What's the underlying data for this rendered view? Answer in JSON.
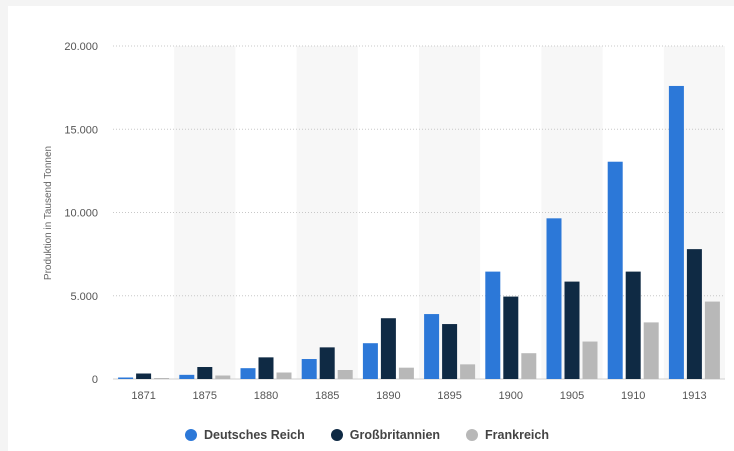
{
  "chart_data": {
    "type": "bar",
    "title": "",
    "xlabel": "",
    "ylabel": "Produktion in Tausend Tonnen",
    "ylim": [
      0,
      20000
    ],
    "yticks": [
      0,
      5000,
      10000,
      15000,
      20000
    ],
    "ytick_labels": [
      "0",
      "5.000",
      "10.000",
      "15.000",
      "20.000"
    ],
    "grid": true,
    "legend_position": "bottom",
    "categories": [
      "1871",
      "1875",
      "1880",
      "1885",
      "1890",
      "1895",
      "1900",
      "1905",
      "1910",
      "1913"
    ],
    "series": [
      {
        "name": "Deutsches Reich",
        "color": "#2c78d8",
        "values": [
          90,
          250,
          650,
          1200,
          2150,
          3900,
          6450,
          9650,
          13050,
          17600
        ]
      },
      {
        "name": "Großbritannien",
        "color": "#0f2a44",
        "values": [
          330,
          720,
          1300,
          1900,
          3650,
          3300,
          4950,
          5850,
          6450,
          7800
        ]
      },
      {
        "name": "Frankreich",
        "color": "#b8b8b8",
        "values": [
          20,
          210,
          390,
          540,
          680,
          880,
          1550,
          2250,
          3400,
          4650
        ]
      }
    ]
  }
}
